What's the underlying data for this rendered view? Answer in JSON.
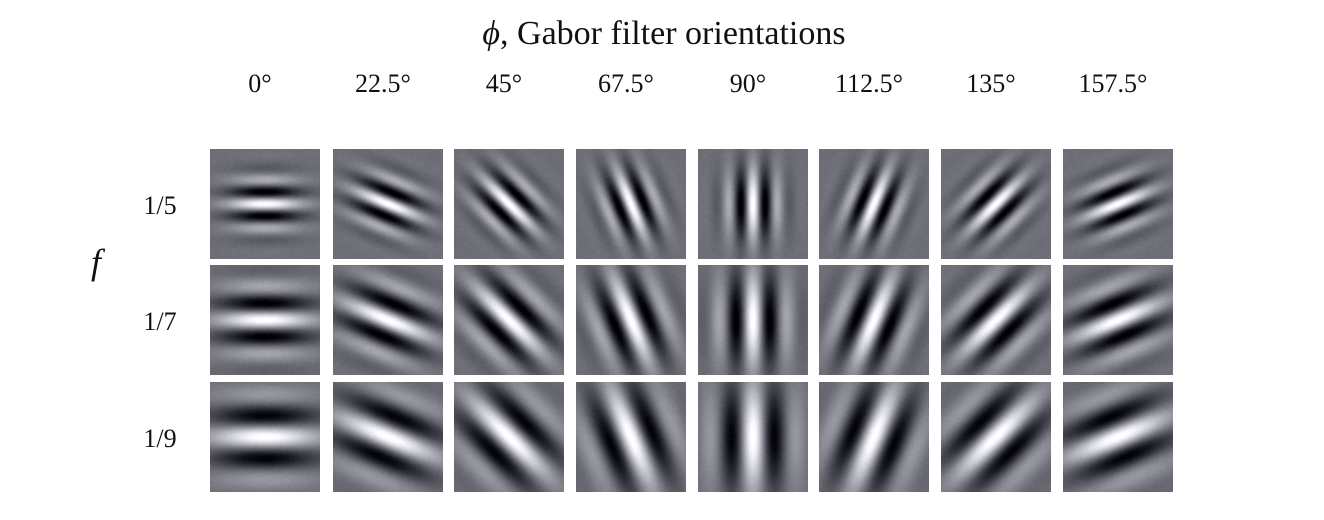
{
  "figure": {
    "title_symbol": "ϕ",
    "title_text": ", Gabor filter orientations",
    "row_axis_label": "f",
    "orientations": [
      {
        "label": "0°",
        "angle_deg": 0
      },
      {
        "label": "22.5°",
        "angle_deg": 22.5
      },
      {
        "label": "45°",
        "angle_deg": 45
      },
      {
        "label": "67.5°",
        "angle_deg": 67.5
      },
      {
        "label": "90°",
        "angle_deg": 90
      },
      {
        "label": "112.5°",
        "angle_deg": 112.5
      },
      {
        "label": "135°",
        "angle_deg": 135
      },
      {
        "label": "157.5°",
        "angle_deg": 157.5
      }
    ],
    "frequencies": [
      {
        "label": "1/5",
        "value": 0.2
      },
      {
        "label": "1/7",
        "value": 0.142857
      },
      {
        "label": "1/9",
        "value": 0.111111
      }
    ],
    "colors": {
      "background": "#ffffff",
      "tile_gray": "#6e6e74",
      "text": "#111111"
    }
  }
}
